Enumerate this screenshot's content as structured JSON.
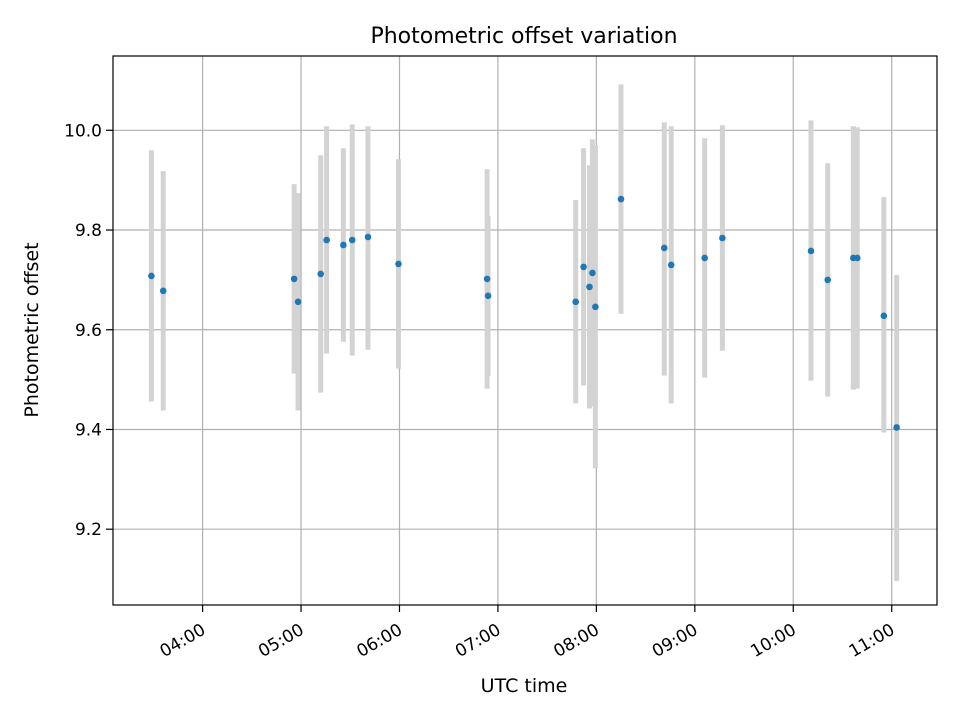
{
  "chart_data": {
    "type": "scatter",
    "title": "Photometric offset variation",
    "xlabel": "UTC time",
    "ylabel": "Photometric offset",
    "x_unit": "UTC time of day (hours)",
    "xlim": [
      3.09,
      11.46
    ],
    "ylim": [
      9.048,
      10.149
    ],
    "x_ticks": [
      {
        "value": 4,
        "label": "04:00"
      },
      {
        "value": 5,
        "label": "05:00"
      },
      {
        "value": 6,
        "label": "06:00"
      },
      {
        "value": 7,
        "label": "07:00"
      },
      {
        "value": 8,
        "label": "08:00"
      },
      {
        "value": 9,
        "label": "09:00"
      },
      {
        "value": 10,
        "label": "10:00"
      },
      {
        "value": 11,
        "label": "11:00"
      }
    ],
    "y_ticks": [
      {
        "value": 9.2,
        "label": "9.2"
      },
      {
        "value": 9.4,
        "label": "9.4"
      },
      {
        "value": 9.6,
        "label": "9.6"
      },
      {
        "value": 9.8,
        "label": "9.8"
      },
      {
        "value": 10.0,
        "label": "10.0"
      }
    ],
    "grid": true,
    "x_tick_rotation_deg": 30,
    "point_color": "#1f77b4",
    "errorbar_color": "#d3d3d3",
    "points": [
      {
        "x": 3.48,
        "y": 9.708,
        "ylow": 9.456,
        "yhigh": 9.96
      },
      {
        "x": 3.6,
        "y": 9.678,
        "ylow": 9.438,
        "yhigh": 9.918
      },
      {
        "x": 4.93,
        "y": 9.702,
        "ylow": 9.512,
        "yhigh": 9.892
      },
      {
        "x": 4.97,
        "y": 9.656,
        "ylow": 9.438,
        "yhigh": 9.874
      },
      {
        "x": 5.2,
        "y": 9.712,
        "ylow": 9.474,
        "yhigh": 9.95
      },
      {
        "x": 5.26,
        "y": 9.78,
        "ylow": 9.552,
        "yhigh": 10.008
      },
      {
        "x": 5.43,
        "y": 9.77,
        "ylow": 9.576,
        "yhigh": 9.964
      },
      {
        "x": 5.52,
        "y": 9.78,
        "ylow": 9.548,
        "yhigh": 10.012
      },
      {
        "x": 5.68,
        "y": 9.786,
        "ylow": 9.56,
        "yhigh": 10.008
      },
      {
        "x": 5.99,
        "y": 9.732,
        "ylow": 9.522,
        "yhigh": 9.942
      },
      {
        "x": 6.89,
        "y": 9.702,
        "ylow": 9.482,
        "yhigh": 9.922
      },
      {
        "x": 6.9,
        "y": 9.668,
        "ylow": 9.508,
        "yhigh": 9.828
      },
      {
        "x": 7.79,
        "y": 9.656,
        "ylow": 9.452,
        "yhigh": 9.86
      },
      {
        "x": 7.87,
        "y": 9.726,
        "ylow": 9.488,
        "yhigh": 9.964
      },
      {
        "x": 7.93,
        "y": 9.686,
        "ylow": 9.442,
        "yhigh": 9.93
      },
      {
        "x": 7.96,
        "y": 9.714,
        "ylow": 9.446,
        "yhigh": 9.982
      },
      {
        "x": 7.99,
        "y": 9.646,
        "ylow": 9.322,
        "yhigh": 9.97
      },
      {
        "x": 8.25,
        "y": 9.862,
        "ylow": 9.632,
        "yhigh": 10.092
      },
      {
        "x": 8.69,
        "y": 9.764,
        "ylow": 9.508,
        "yhigh": 10.016
      },
      {
        "x": 8.76,
        "y": 9.73,
        "ylow": 9.452,
        "yhigh": 10.008
      },
      {
        "x": 9.1,
        "y": 9.744,
        "ylow": 9.504,
        "yhigh": 9.984
      },
      {
        "x": 9.28,
        "y": 9.784,
        "ylow": 9.558,
        "yhigh": 10.01
      },
      {
        "x": 10.18,
        "y": 9.758,
        "ylow": 9.498,
        "yhigh": 10.02
      },
      {
        "x": 10.35,
        "y": 9.7,
        "ylow": 9.466,
        "yhigh": 9.934
      },
      {
        "x": 10.61,
        "y": 9.744,
        "ylow": 9.48,
        "yhigh": 10.008
      },
      {
        "x": 10.65,
        "y": 9.744,
        "ylow": 9.482,
        "yhigh": 10.006
      },
      {
        "x": 10.92,
        "y": 9.628,
        "ylow": 9.394,
        "yhigh": 9.866
      },
      {
        "x": 11.05,
        "y": 9.404,
        "ylow": 9.096,
        "yhigh": 9.71
      }
    ]
  }
}
